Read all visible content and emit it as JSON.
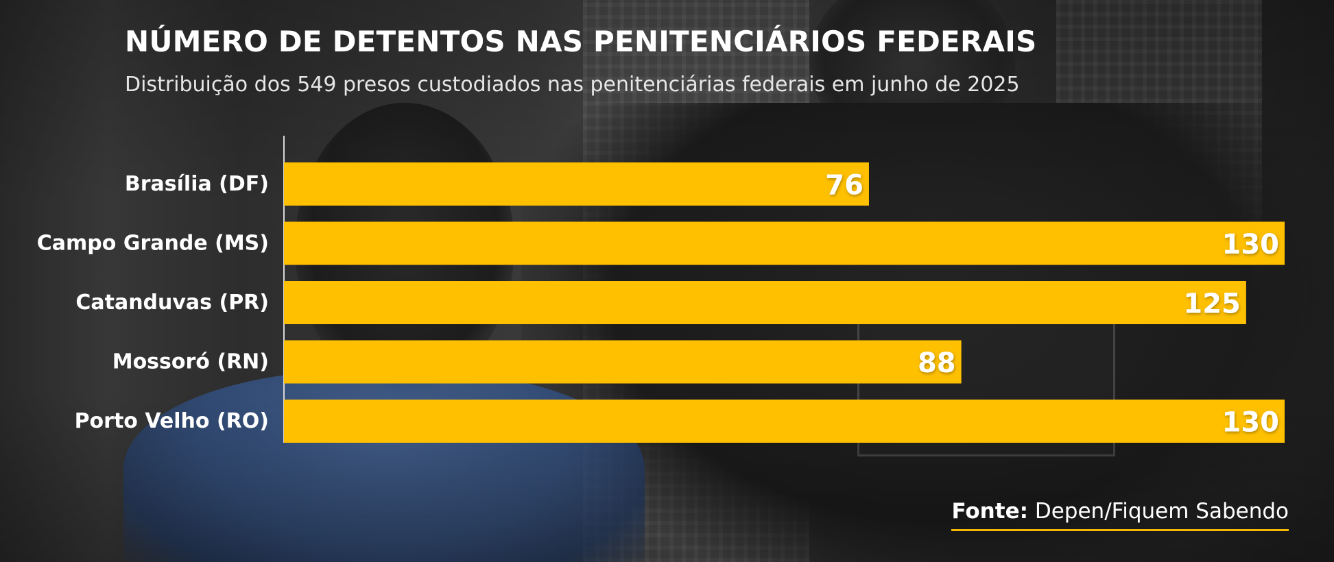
{
  "chart_data": {
    "type": "bar",
    "orientation": "horizontal",
    "title": "NÚMERO DE DETENTOS NAS PENITENCIÁRIOS FEDERAIS",
    "subtitle": "Distribuição dos 549 presos custodiados nas penitenciárias federais em junho de 2025",
    "categories": [
      "Brasília (DF)",
      "Campo Grande (MS)",
      "Catanduvas (PR)",
      "Mossoró (RN)",
      "Porto Velho (RO)"
    ],
    "values": [
      76,
      130,
      125,
      88,
      130
    ],
    "xlim": [
      0,
      130
    ],
    "grid": false,
    "bar_color": "#FFC000"
  },
  "source": {
    "label": "Fonte:",
    "text": "Depen/Fiquem Sabendo"
  }
}
